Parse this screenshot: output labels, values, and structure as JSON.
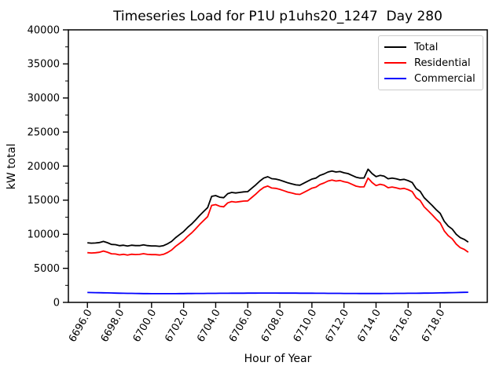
{
  "chart_data": {
    "type": "line",
    "title": "Timeseries Load for P1U p1uhs20_1247  Day 280",
    "xlabel": "Hour of Year",
    "ylabel": "kW total",
    "xlim": [
      6694.8125,
      6720.9375
    ],
    "ylim": [
      0,
      40000
    ],
    "grid": false,
    "x_tick_rotation_deg": 60,
    "x_tick_values": [
      6696,
      6698,
      6700,
      6702,
      6704,
      6706,
      6708,
      6710,
      6712,
      6714,
      6716,
      6718
    ],
    "x_tick_labels": [
      "6696.0",
      "6698.0",
      "6700.0",
      "6702.0",
      "6704.0",
      "6706.0",
      "6708.0",
      "6710.0",
      "6712.0",
      "6714.0",
      "6716.0",
      "6718.0"
    ],
    "y_tick_values": [
      0,
      5000,
      10000,
      15000,
      20000,
      25000,
      30000,
      35000,
      40000
    ],
    "y_tick_labels": [
      "0",
      "5000",
      "10000",
      "15000",
      "20000",
      "25000",
      "30000",
      "35000",
      "40000"
    ],
    "y_minor_tick_step": 2500,
    "legend": {
      "position": "upper right"
    },
    "x": [
      6696.0,
      6696.25,
      6696.5,
      6696.75,
      6697.0,
      6697.25,
      6697.5,
      6697.75,
      6698.0,
      6698.25,
      6698.5,
      6698.75,
      6699.0,
      6699.25,
      6699.5,
      6699.75,
      6700.0,
      6700.25,
      6700.5,
      6700.75,
      6701.0,
      6701.25,
      6701.5,
      6701.75,
      6702.0,
      6702.25,
      6702.5,
      6702.75,
      6703.0,
      6703.25,
      6703.5,
      6703.75,
      6704.0,
      6704.25,
      6704.5,
      6704.75,
      6705.0,
      6705.25,
      6705.5,
      6705.75,
      6706.0,
      6706.25,
      6706.5,
      6706.75,
      6707.0,
      6707.25,
      6707.5,
      6707.75,
      6708.0,
      6708.25,
      6708.5,
      6708.75,
      6709.0,
      6709.25,
      6709.5,
      6709.75,
      6710.0,
      6710.25,
      6710.5,
      6710.75,
      6711.0,
      6711.25,
      6711.5,
      6711.75,
      6712.0,
      6712.25,
      6712.5,
      6712.75,
      6713.0,
      6713.25,
      6713.5,
      6713.75,
      6714.0,
      6714.25,
      6714.5,
      6714.75,
      6715.0,
      6715.25,
      6715.5,
      6715.75,
      6716.0,
      6716.25,
      6716.5,
      6716.75,
      6717.0,
      6717.25,
      6717.5,
      6717.75,
      6718.0,
      6718.25,
      6718.5,
      6718.75,
      6719.0,
      6719.25,
      6719.5,
      6719.75
    ],
    "series": [
      {
        "name": "Total",
        "color": "#000000",
        "values": [
          8750,
          8690,
          8720,
          8780,
          8950,
          8760,
          8510,
          8470,
          8320,
          8390,
          8280,
          8390,
          8330,
          8340,
          8440,
          8330,
          8290,
          8290,
          8230,
          8330,
          8600,
          8950,
          9500,
          9950,
          10400,
          11000,
          11500,
          12100,
          12750,
          13340,
          13910,
          15560,
          15680,
          15440,
          15370,
          15950,
          16140,
          16060,
          16140,
          16220,
          16250,
          16750,
          17250,
          17800,
          18250,
          18440,
          18150,
          18100,
          17950,
          17750,
          17550,
          17400,
          17250,
          17200,
          17500,
          17800,
          18100,
          18250,
          18640,
          18850,
          19140,
          19290,
          19140,
          19210,
          19020,
          18910,
          18640,
          18370,
          18250,
          18260,
          19550,
          18900,
          18450,
          18640,
          18520,
          18140,
          18250,
          18140,
          17980,
          18060,
          17870,
          17600,
          16700,
          16300,
          15370,
          14800,
          14220,
          13600,
          13060,
          11910,
          11200,
          10760,
          10000,
          9500,
          9250,
          8850
        ]
      },
      {
        "name": "Residential",
        "color": "#ff0000",
        "values": [
          7300,
          7250,
          7290,
          7360,
          7540,
          7365,
          7130,
          7105,
          6970,
          7050,
          6950,
          7070,
          7020,
          7040,
          7145,
          7040,
          7005,
          7010,
          6952,
          7054,
          7325,
          7672,
          8218,
          8662,
          9105,
          9700,
          10195,
          10790,
          11435,
          12022,
          12588,
          14234,
          14350,
          14107,
          14034,
          14610,
          14797,
          14714,
          14790,
          14867,
          14894,
          15390,
          15887,
          16434,
          16880,
          17071,
          16782,
          16734,
          16585,
          16387,
          16189,
          16042,
          15895,
          15848,
          16151,
          16454,
          16757,
          16910,
          17303,
          17516,
          17809,
          17962,
          17815,
          17888,
          17701,
          17594,
          17327,
          17060,
          16942,
          16954,
          18245,
          17596,
          17145,
          17333,
          17210,
          16827,
          16934,
          16820,
          16656,
          16732,
          16538,
          16263,
          15358,
          14952,
          14015,
          13438,
          12850,
          12220,
          11668,
          10505,
          9782,
          9328,
          8554,
          8040,
          7776,
          7362
        ]
      },
      {
        "name": "Commercial",
        "color": "#0000ff",
        "values": [
          1450,
          1440,
          1430,
          1420,
          1410,
          1395,
          1380,
          1365,
          1350,
          1340,
          1330,
          1320,
          1310,
          1300,
          1295,
          1290,
          1285,
          1280,
          1278,
          1276,
          1275,
          1278,
          1282,
          1288,
          1295,
          1300,
          1305,
          1310,
          1315,
          1318,
          1322,
          1326,
          1330,
          1333,
          1336,
          1340,
          1343,
          1346,
          1350,
          1353,
          1356,
          1360,
          1363,
          1366,
          1370,
          1369,
          1368,
          1366,
          1365,
          1363,
          1361,
          1358,
          1355,
          1352,
          1349,
          1346,
          1343,
          1340,
          1337,
          1334,
          1331,
          1328,
          1325,
          1322,
          1319,
          1316,
          1313,
          1310,
          1308,
          1306,
          1305,
          1304,
          1305,
          1307,
          1310,
          1313,
          1316,
          1320,
          1324,
          1328,
          1332,
          1337,
          1342,
          1348,
          1355,
          1362,
          1370,
          1380,
          1392,
          1405,
          1418,
          1432,
          1446,
          1460,
          1474,
          1488
        ]
      }
    ]
  }
}
